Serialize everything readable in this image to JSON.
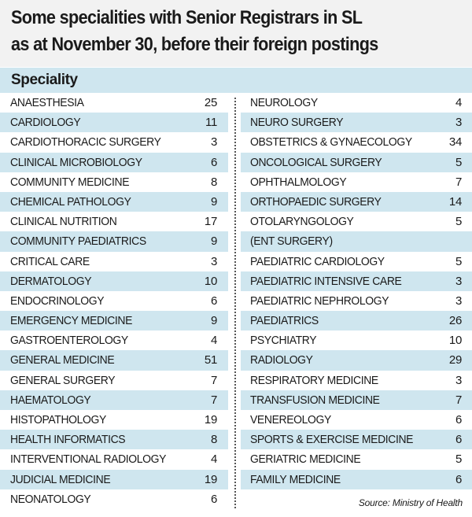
{
  "title": {
    "line1": "Some specialities with Senior Registrars in SL",
    "line2": "as at November 30, before their foreign postings"
  },
  "header": {
    "label": "Speciality"
  },
  "colors": {
    "band": "#cfe6ef",
    "title_bg": "#f2f2f2"
  },
  "left_column": [
    {
      "name": "ANAESTHESIA",
      "value": "25"
    },
    {
      "name": "CARDIOLOGY",
      "value": "11"
    },
    {
      "name": "CARDIOTHORACIC SURGERY",
      "value": "3"
    },
    {
      "name": "CLINICAL MICROBIOLOGY",
      "value": "6"
    },
    {
      "name": "COMMUNITY MEDICINE",
      "value": "8"
    },
    {
      "name": "CHEMICAL PATHOLOGY",
      "value": "9"
    },
    {
      "name": "CLINICAL NUTRITION",
      "value": "17"
    },
    {
      "name": "COMMUNITY PAEDIATRICS",
      "value": "9"
    },
    {
      "name": "CRITICAL CARE",
      "value": "3"
    },
    {
      "name": "DERMATOLOGY",
      "value": "10"
    },
    {
      "name": "ENDOCRINOLOGY",
      "value": "6"
    },
    {
      "name": "EMERGENCY MEDICINE",
      "value": "9"
    },
    {
      "name": "GASTROENTEROLOGY",
      "value": "4"
    },
    {
      "name": "GENERAL MEDICINE",
      "value": "51"
    },
    {
      "name": "GENERAL SURGERY",
      "value": "7"
    },
    {
      "name": "HAEMATOLOGY",
      "value": "7"
    },
    {
      "name": "HISTOPATHOLOGY",
      "value": "19"
    },
    {
      "name": "HEALTH INFORMATICS",
      "value": "8"
    },
    {
      "name": "INTERVENTIONAL RADIOLOGY",
      "value": "4"
    },
    {
      "name": "JUDICIAL MEDICINE",
      "value": "19"
    },
    {
      "name": "NEONATOLOGY",
      "value": "6"
    }
  ],
  "right_column": [
    {
      "name": "NEUROLOGY",
      "value": "4"
    },
    {
      "name": "NEURO SURGERY",
      "value": "3"
    },
    {
      "name": "OBSTETRICS & GYNAECOLOGY",
      "value": "34"
    },
    {
      "name": "ONCOLOGICAL SURGERY",
      "value": "5"
    },
    {
      "name": "OPHTHALMOLOGY",
      "value": "7"
    },
    {
      "name": "ORTHOPAEDIC SURGERY",
      "value": "14"
    },
    {
      "name": "OTOLARYNGOLOGY",
      "value": "5"
    },
    {
      "name": "(ENT SURGERY)",
      "value": ""
    },
    {
      "name": "PAEDIATRIC CARDIOLOGY",
      "value": "5"
    },
    {
      "name": "PAEDIATRIC INTENSIVE CARE",
      "value": "3"
    },
    {
      "name": "PAEDIATRIC NEPHROLOGY",
      "value": "3"
    },
    {
      "name": "PAEDIATRICS",
      "value": "26"
    },
    {
      "name": "PSYCHIATRY",
      "value": "10"
    },
    {
      "name": "RADIOLOGY",
      "value": "29"
    },
    {
      "name": "RESPIRATORY MEDICINE",
      "value": "3"
    },
    {
      "name": "TRANSFUSION MEDICINE",
      "value": "7"
    },
    {
      "name": "VENEREOLOGY",
      "value": "6"
    },
    {
      "name": "SPORTS & EXERCISE MEDICINE",
      "value": "6"
    },
    {
      "name": "GERIATRIC MEDICINE",
      "value": "5"
    },
    {
      "name": "FAMILY MEDICINE",
      "value": "6"
    }
  ],
  "source": "Source: Ministry of Health"
}
